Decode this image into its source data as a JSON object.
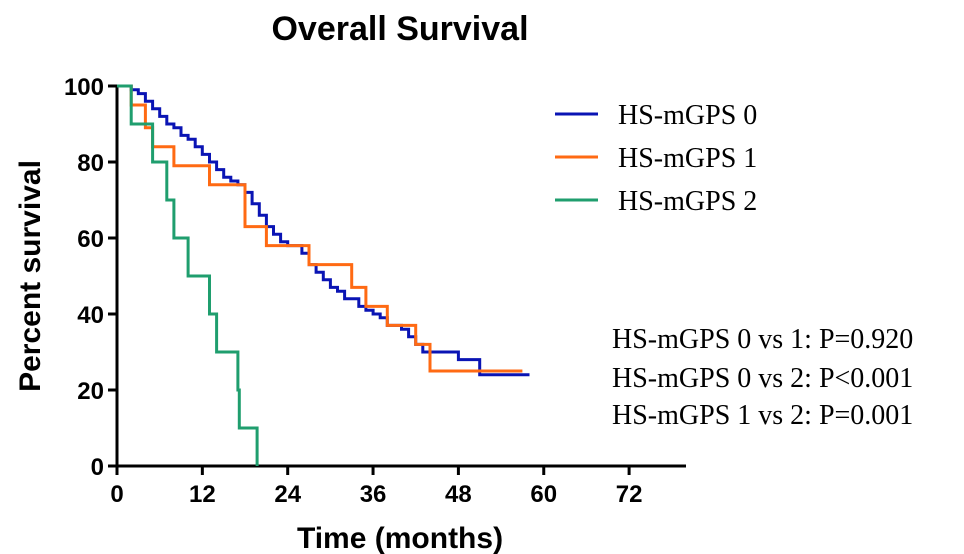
{
  "chart_data": {
    "type": "line",
    "subtype": "kaplan-meier-step",
    "title": "Overall Survival",
    "xlabel": "Time (months)",
    "ylabel": "Percent survival",
    "xlim": [
      0,
      80
    ],
    "ylim": [
      0,
      100
    ],
    "xticks": [
      "0",
      "12",
      "24",
      "36",
      "48",
      "60",
      "72"
    ],
    "xtick_values": [
      0,
      12,
      24,
      36,
      48,
      60,
      72
    ],
    "yticks": [
      "0",
      "20",
      "40",
      "60",
      "80",
      "100"
    ],
    "ytick_values": [
      0,
      20,
      40,
      60,
      80,
      100
    ],
    "grid": false,
    "legend_position": "top-right",
    "series": [
      {
        "name": "HS-mGPS 0",
        "color": "#0a14b4",
        "points": [
          [
            0,
            100
          ],
          [
            2,
            100
          ],
          [
            2,
            99
          ],
          [
            3,
            99
          ],
          [
            3,
            98
          ],
          [
            4,
            98
          ],
          [
            4,
            96
          ],
          [
            5,
            96
          ],
          [
            5,
            94
          ],
          [
            6,
            94
          ],
          [
            6,
            92
          ],
          [
            7,
            92
          ],
          [
            7,
            90
          ],
          [
            8,
            90
          ],
          [
            8,
            89
          ],
          [
            9,
            89
          ],
          [
            9,
            87
          ],
          [
            10,
            87
          ],
          [
            10,
            86
          ],
          [
            11,
            86
          ],
          [
            11,
            84
          ],
          [
            12,
            84
          ],
          [
            12,
            82
          ],
          [
            13,
            82
          ],
          [
            13,
            80
          ],
          [
            14,
            80
          ],
          [
            14,
            78
          ],
          [
            15,
            78
          ],
          [
            15,
            76
          ],
          [
            16,
            76
          ],
          [
            16,
            75
          ],
          [
            17,
            75
          ],
          [
            17,
            74
          ],
          [
            18,
            74
          ],
          [
            18,
            72
          ],
          [
            19,
            72
          ],
          [
            19,
            69
          ],
          [
            20,
            69
          ],
          [
            20,
            66
          ],
          [
            21,
            66
          ],
          [
            21,
            63
          ],
          [
            22,
            63
          ],
          [
            22,
            61
          ],
          [
            23,
            61
          ],
          [
            23,
            59
          ],
          [
            24,
            59
          ],
          [
            24,
            58
          ],
          [
            26,
            58
          ],
          [
            26,
            56
          ],
          [
            27,
            56
          ],
          [
            27,
            53
          ],
          [
            28,
            53
          ],
          [
            28,
            51
          ],
          [
            29,
            51
          ],
          [
            29,
            49
          ],
          [
            30,
            49
          ],
          [
            30,
            47
          ],
          [
            31,
            47
          ],
          [
            31,
            46
          ],
          [
            32,
            46
          ],
          [
            32,
            44
          ],
          [
            34,
            44
          ],
          [
            34,
            42
          ],
          [
            35,
            42
          ],
          [
            35,
            41
          ],
          [
            36,
            41
          ],
          [
            36,
            40
          ],
          [
            37,
            40
          ],
          [
            37,
            39
          ],
          [
            38,
            39
          ],
          [
            38,
            37
          ],
          [
            40,
            37
          ],
          [
            40,
            36
          ],
          [
            41,
            36
          ],
          [
            41,
            34
          ],
          [
            42,
            34
          ],
          [
            42,
            32
          ],
          [
            43,
            32
          ],
          [
            43,
            30
          ],
          [
            48,
            30
          ],
          [
            48,
            28
          ],
          [
            51,
            28
          ],
          [
            51,
            24
          ],
          [
            58,
            24
          ]
        ]
      },
      {
        "name": "HS-mGPS 1",
        "color": "#ff6a13",
        "points": [
          [
            0,
            100
          ],
          [
            2,
            100
          ],
          [
            2,
            95
          ],
          [
            4,
            95
          ],
          [
            4,
            89
          ],
          [
            5,
            89
          ],
          [
            5,
            84
          ],
          [
            8,
            84
          ],
          [
            8,
            79
          ],
          [
            13,
            79
          ],
          [
            13,
            74
          ],
          [
            18,
            74
          ],
          [
            18,
            63
          ],
          [
            21,
            63
          ],
          [
            21,
            58
          ],
          [
            27,
            58
          ],
          [
            27,
            53
          ],
          [
            33,
            53
          ],
          [
            33,
            47
          ],
          [
            35,
            47
          ],
          [
            35,
            42
          ],
          [
            38,
            42
          ],
          [
            38,
            37
          ],
          [
            42,
            37
          ],
          [
            42,
            32
          ],
          [
            44,
            32
          ],
          [
            44,
            25
          ],
          [
            57,
            25
          ]
        ]
      },
      {
        "name": "HS-mGPS 2",
        "color": "#1f9e6e",
        "points": [
          [
            0,
            100
          ],
          [
            2,
            100
          ],
          [
            2,
            90
          ],
          [
            5,
            90
          ],
          [
            5,
            80
          ],
          [
            7,
            80
          ],
          [
            7,
            70
          ],
          [
            8,
            70
          ],
          [
            8,
            60
          ],
          [
            10,
            60
          ],
          [
            10,
            50
          ],
          [
            13,
            50
          ],
          [
            13,
            40
          ],
          [
            14,
            40
          ],
          [
            14,
            30
          ],
          [
            17,
            30
          ],
          [
            17,
            20
          ],
          [
            17.2,
            20
          ],
          [
            17.2,
            10
          ],
          [
            19.7,
            10
          ],
          [
            19.7,
            0
          ]
        ]
      }
    ],
    "annotations": [
      "HS-mGPS 0 vs 1: P=0.920",
      "HS-mGPS 0 vs 2: P<0.001",
      "HS-mGPS 1 vs 2: P=0.001"
    ]
  }
}
